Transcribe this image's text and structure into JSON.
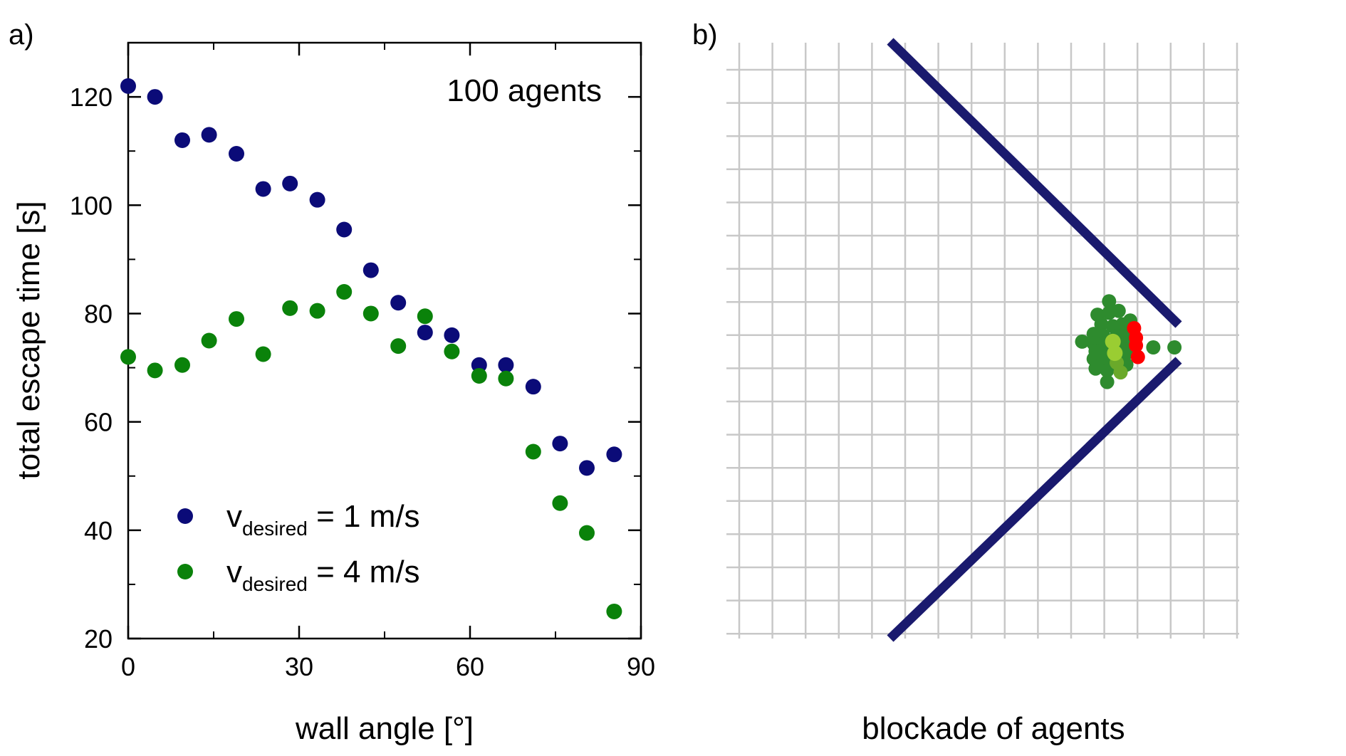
{
  "panel_a": {
    "label": "a)",
    "annotation": "100 agents",
    "legend": [
      {
        "v": "v",
        "sub": "desired",
        "rest": " = 1 m/s"
      },
      {
        "v": "v",
        "sub": "desired",
        "rest": " = 4 m/s"
      }
    ]
  },
  "panel_b": {
    "label": "b)",
    "caption": "blockade of agents"
  },
  "colors": {
    "series1": "#0b0b78",
    "series2": "#0a820a",
    "grid": "#c8c8c8",
    "wall": "#1a1a6e",
    "agent_dark": "#2e8b2e",
    "agent_light": "#9acd32",
    "agent_mid": "#6aa92a",
    "agent_red": "#ff0000"
  },
  "chart_data": [
    {
      "type": "scatter",
      "title": "",
      "xlabel": "wall angle [°]",
      "ylabel": "total escape time [s]",
      "xlim": [
        0,
        90
      ],
      "ylim": [
        20,
        130
      ],
      "xticks": [
        0,
        30,
        60,
        90
      ],
      "yticks": [
        20,
        40,
        60,
        80,
        100,
        120
      ],
      "legend_position": "bottom-left",
      "series": [
        {
          "name": "v_desired = 1 m/s",
          "x": [
            0,
            4.7,
            9.5,
            14.2,
            19,
            23.7,
            28.4,
            33.2,
            37.9,
            42.6,
            47.4,
            52.1,
            56.8,
            61.6,
            66.3,
            71.1,
            75.8,
            80.5,
            85.3
          ],
          "y": [
            122,
            120,
            112,
            113,
            109.5,
            103,
            104,
            101,
            95.5,
            88,
            82,
            76.5,
            76,
            70.5,
            70.5,
            66.5,
            56,
            51.5,
            54
          ]
        },
        {
          "name": "v_desired = 4 m/s",
          "x": [
            0,
            4.7,
            9.5,
            14.2,
            19,
            23.7,
            28.4,
            33.2,
            37.9,
            42.6,
            47.4,
            52.1,
            56.8,
            61.6,
            66.3,
            71.1,
            75.8,
            80.5,
            85.3
          ],
          "y": [
            72,
            69.5,
            70.5,
            75,
            79,
            72.5,
            81,
            80.5,
            84,
            80,
            74,
            79.5,
            73,
            68.5,
            68,
            54.5,
            45,
            39.5,
            25
          ]
        }
      ]
    },
    {
      "type": "scatter",
      "title": "",
      "xlabel": "blockade of agents",
      "ylabel": "",
      "grid": true,
      "agents": {
        "dark": [
          [
            -0.1,
            2.4
          ],
          [
            -0.7,
            1.7
          ],
          [
            -0.1,
            1.8
          ],
          [
            0.4,
            1.9
          ],
          [
            -0.5,
            1.2
          ],
          [
            0.1,
            1.1
          ],
          [
            0.6,
            1.2
          ],
          [
            1.0,
            1.4
          ],
          [
            -0.9,
            0.7
          ],
          [
            -0.4,
            0.6
          ],
          [
            0.3,
            0.6
          ],
          [
            0.8,
            0.8
          ],
          [
            -1.5,
            0.3
          ],
          [
            -0.9,
            0.2
          ],
          [
            -0.4,
            0.2
          ],
          [
            0.7,
            0.2
          ],
          [
            -0.8,
            -0.2
          ],
          [
            -0.3,
            -0.3
          ],
          [
            0.8,
            -0.3
          ],
          [
            -0.9,
            -0.6
          ],
          [
            -0.4,
            -0.7
          ],
          [
            0.8,
            -0.9
          ],
          [
            -0.8,
            -1.1
          ],
          [
            -0.2,
            -1.2
          ],
          [
            -0.2,
            -1.8
          ],
          [
            2.2,
            0.0
          ],
          [
            3.3,
            0.0
          ]
        ],
        "light": [
          [
            0.1,
            0.3
          ],
          [
            0.2,
            -0.3
          ]
        ],
        "mid": [
          [
            0.3,
            -0.8
          ],
          [
            0.5,
            -1.3
          ]
        ],
        "red": [
          [
            1.2,
            1.0
          ],
          [
            1.3,
            0.5
          ],
          [
            1.3,
            0.1
          ],
          [
            1.4,
            -0.5
          ]
        ]
      }
    }
  ]
}
